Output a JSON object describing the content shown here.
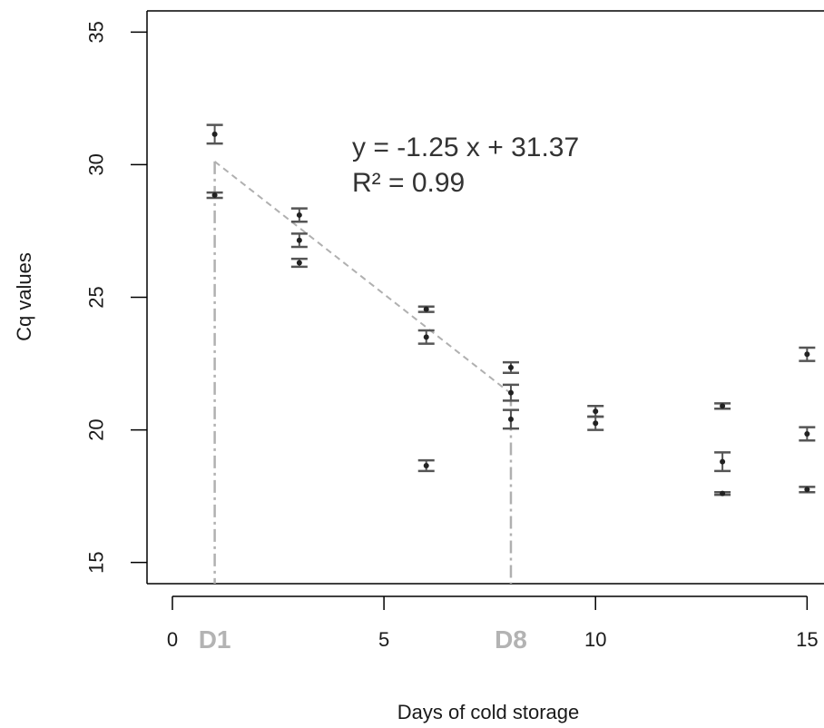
{
  "chart_data": {
    "type": "scatter",
    "xlabel": "Days of cold storage",
    "ylabel": "Cq values",
    "xlim": [
      -0.6,
      15.4
    ],
    "ylim": [
      14.2,
      35.8
    ],
    "x_ticks": [
      0,
      5,
      10,
      15
    ],
    "y_ticks": [
      15,
      20,
      25,
      30,
      35
    ],
    "points": [
      {
        "x": 1,
        "y": 31.15,
        "err": 0.35
      },
      {
        "x": 1,
        "y": 28.85,
        "err": 0.1
      },
      {
        "x": 3,
        "y": 28.1,
        "err": 0.25
      },
      {
        "x": 3,
        "y": 27.15,
        "err": 0.25
      },
      {
        "x": 3,
        "y": 26.3,
        "err": 0.15
      },
      {
        "x": 6,
        "y": 24.55,
        "err": 0.1
      },
      {
        "x": 6,
        "y": 23.5,
        "err": 0.25
      },
      {
        "x": 6,
        "y": 18.65,
        "err": 0.2
      },
      {
        "x": 8,
        "y": 22.35,
        "err": 0.2
      },
      {
        "x": 8,
        "y": 21.4,
        "err": 0.3
      },
      {
        "x": 8,
        "y": 20.4,
        "err": 0.35
      },
      {
        "x": 10,
        "y": 20.7,
        "err": 0.2
      },
      {
        "x": 10,
        "y": 20.25,
        "err": 0.25
      },
      {
        "x": 13,
        "y": 20.9,
        "err": 0.1
      },
      {
        "x": 13,
        "y": 18.8,
        "err": 0.35
      },
      {
        "x": 13,
        "y": 17.6,
        "err": 0.05
      },
      {
        "x": 15,
        "y": 22.85,
        "err": 0.25
      },
      {
        "x": 15,
        "y": 19.85,
        "err": 0.25
      },
      {
        "x": 15,
        "y": 17.75,
        "err": 0.1
      }
    ],
    "fit": {
      "slope": -1.25,
      "intercept": 31.37,
      "x_range": [
        1,
        8
      ]
    },
    "equation_line1": "y =  -1.25 x + 31.37",
    "equation_line2": "R² =  0.99",
    "markers": [
      {
        "x": 1,
        "label": "D1"
      },
      {
        "x": 8,
        "label": "D8"
      }
    ],
    "grid": false,
    "legend": "none"
  }
}
